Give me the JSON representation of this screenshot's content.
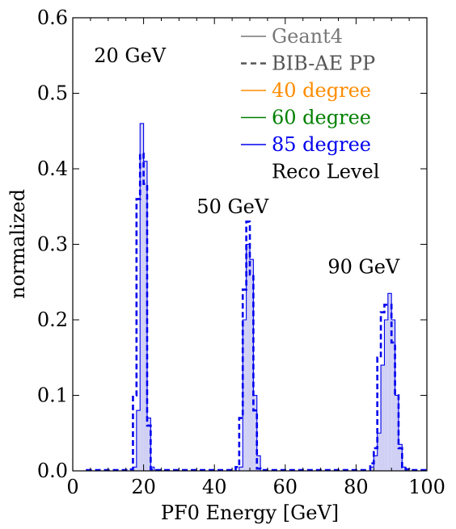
{
  "chart_data": {
    "type": "histogram",
    "xlabel": "PF0 Energy [GeV]",
    "ylabel": "normalized",
    "xlim": [
      0,
      100
    ],
    "ylim": [
      0,
      0.6
    ],
    "xticks": [
      "0",
      "20",
      "40",
      "60",
      "80",
      "100"
    ],
    "yticks": [
      "0.0",
      "0.1",
      "0.2",
      "0.3",
      "0.4",
      "0.5",
      "0.6"
    ],
    "bin_width": 1,
    "legend_position": "top-right",
    "legend": [
      {
        "label": "Geant4",
        "style": "solid",
        "color": "#777777"
      },
      {
        "label": "BIB-AE PP",
        "style": "dashed",
        "color": "#555555"
      },
      {
        "label": "40 degree",
        "style": "solid",
        "color": "#ff8c00"
      },
      {
        "label": "60 degree",
        "style": "solid",
        "color": "#008000"
      },
      {
        "label": "85 degree",
        "style": "solid",
        "color": "#0000ee"
      },
      {
        "label": "Reco Level",
        "style": "none",
        "color": "#000000"
      }
    ],
    "annotations": [
      {
        "text": "20 GeV",
        "x": 6,
        "y": 0.55
      },
      {
        "text": "50 GeV",
        "x": 35,
        "y": 0.35
      },
      {
        "text": "90 GeV",
        "x": 72,
        "y": 0.27
      }
    ],
    "series": [
      {
        "name": "Geant4",
        "style": "solid-filled",
        "color": "#0000ee",
        "fill": "#d0d0f5",
        "bins": [
          [
            17,
            0.005
          ],
          [
            18,
            0.08
          ],
          [
            19,
            0.46
          ],
          [
            20,
            0.41
          ],
          [
            21,
            0.07
          ],
          [
            22,
            0.005
          ],
          [
            47,
            0.005
          ],
          [
            48,
            0.2
          ],
          [
            49,
            0.3
          ],
          [
            50,
            0.28
          ],
          [
            51,
            0.1
          ],
          [
            52,
            0.02
          ],
          [
            84,
            0.005
          ],
          [
            85,
            0.02
          ],
          [
            86,
            0.05
          ],
          [
            87,
            0.14
          ],
          [
            88,
            0.2
          ],
          [
            89,
            0.235
          ],
          [
            90,
            0.2
          ],
          [
            91,
            0.1
          ],
          [
            92,
            0.035
          ],
          [
            93,
            0.005
          ]
        ]
      },
      {
        "name": "BIB-AE PP",
        "style": "dashed",
        "color": "#0000ee",
        "bins": [
          [
            4,
            0.001
          ],
          [
            5,
            0.001
          ],
          [
            6,
            0.001
          ],
          [
            7,
            0.001
          ],
          [
            8,
            0.001
          ],
          [
            9,
            0.001
          ],
          [
            10,
            0.001
          ],
          [
            11,
            0.001
          ],
          [
            12,
            0.001
          ],
          [
            13,
            0.001
          ],
          [
            14,
            0.001
          ],
          [
            15,
            0.001
          ],
          [
            16,
            0.002
          ],
          [
            17,
            0.1
          ],
          [
            18,
            0.36
          ],
          [
            19,
            0.42
          ],
          [
            20,
            0.38
          ],
          [
            21,
            0.06
          ],
          [
            22,
            0.002
          ],
          [
            23,
            0.001
          ],
          [
            24,
            0.001
          ],
          [
            25,
            0.001
          ],
          [
            26,
            0.001
          ],
          [
            27,
            0.001
          ],
          [
            28,
            0.001
          ],
          [
            29,
            0.001
          ],
          [
            30,
            0.001
          ],
          [
            31,
            0.001
          ],
          [
            32,
            0.001
          ],
          [
            33,
            0.001
          ],
          [
            34,
            0.001
          ],
          [
            35,
            0.001
          ],
          [
            36,
            0.001
          ],
          [
            37,
            0.001
          ],
          [
            38,
            0.001
          ],
          [
            39,
            0.001
          ],
          [
            40,
            0.001
          ],
          [
            41,
            0.001
          ],
          [
            42,
            0.001
          ],
          [
            43,
            0.001
          ],
          [
            44,
            0.001
          ],
          [
            45,
            0.001
          ],
          [
            46,
            0.005
          ],
          [
            47,
            0.07
          ],
          [
            48,
            0.24
          ],
          [
            49,
            0.33
          ],
          [
            50,
            0.26
          ],
          [
            51,
            0.08
          ],
          [
            52,
            0.003
          ],
          [
            53,
            0.001
          ],
          [
            54,
            0.001
          ],
          [
            55,
            0.001
          ],
          [
            56,
            0.001
          ],
          [
            57,
            0.001
          ],
          [
            58,
            0.001
          ],
          [
            59,
            0.001
          ],
          [
            60,
            0.001
          ],
          [
            61,
            0.001
          ],
          [
            62,
            0.001
          ],
          [
            63,
            0.001
          ],
          [
            64,
            0.001
          ],
          [
            65,
            0.001
          ],
          [
            66,
            0.001
          ],
          [
            67,
            0.001
          ],
          [
            68,
            0.001
          ],
          [
            69,
            0.001
          ],
          [
            70,
            0.001
          ],
          [
            71,
            0.001
          ],
          [
            72,
            0.001
          ],
          [
            73,
            0.001
          ],
          [
            74,
            0.001
          ],
          [
            75,
            0.001
          ],
          [
            76,
            0.001
          ],
          [
            77,
            0.001
          ],
          [
            78,
            0.001
          ],
          [
            79,
            0.001
          ],
          [
            80,
            0.001
          ],
          [
            81,
            0.001
          ],
          [
            82,
            0.001
          ],
          [
            83,
            0.001
          ],
          [
            84,
            0.01
          ],
          [
            85,
            0.03
          ],
          [
            86,
            0.15
          ],
          [
            87,
            0.21
          ],
          [
            88,
            0.22
          ],
          [
            89,
            0.22
          ],
          [
            90,
            0.17
          ],
          [
            91,
            0.1
          ],
          [
            92,
            0.03
          ],
          [
            93,
            0.005
          ],
          [
            94,
            0.002
          ],
          [
            95,
            0.001
          ],
          [
            96,
            0.001
          ],
          [
            97,
            0.001
          ],
          [
            98,
            0.001
          ],
          [
            99,
            0.001
          ]
        ]
      }
    ]
  }
}
